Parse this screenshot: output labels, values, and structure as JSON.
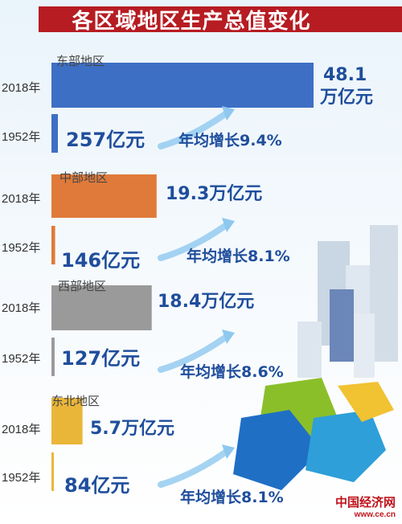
{
  "header": {
    "title": "各区域地区生产总值变化"
  },
  "watermark": {
    "site": "中国经济网",
    "url": "www.ce.cn"
  },
  "chart_data": {
    "type": "bar",
    "title": "各区域地区生产总值变化",
    "units": {
      "v2018": "万亿元",
      "v1952": "亿元"
    },
    "regions": [
      {
        "name": "东部地区",
        "color": "#3d6fc4",
        "year2018": "2018年",
        "year1952": "1952年",
        "v2018": 48.1,
        "v1952": 257,
        "label2018": "48.1",
        "label2018b": "万亿元",
        "label1952": "257亿元",
        "growth": "年均增长9.4%"
      },
      {
        "name": "中部地区",
        "color": "#e07a3a",
        "year2018": "2018年",
        "year1952": "1952年",
        "v2018": 19.3,
        "v1952": 146,
        "label2018": "19.3万亿元",
        "label2018b": "",
        "label1952": "146亿元",
        "growth": "年均增长8.1%"
      },
      {
        "name": "西部地区",
        "color": "#9a9a9a",
        "year2018": "2018年",
        "year1952": "1952年",
        "v2018": 18.4,
        "v1952": 127,
        "label2018": "18.4万亿元",
        "label2018b": "",
        "label1952": "127亿元",
        "growth": "年均增长8.6%"
      },
      {
        "name": "东北地区",
        "color": "#eab63a",
        "year2018": "2018年",
        "year1952": "1952年",
        "v2018": 5.7,
        "v1952": 84,
        "label2018": "5.7万亿元",
        "label2018b": "",
        "label1952": "84亿元",
        "growth": "年均增长8.1%"
      }
    ]
  }
}
